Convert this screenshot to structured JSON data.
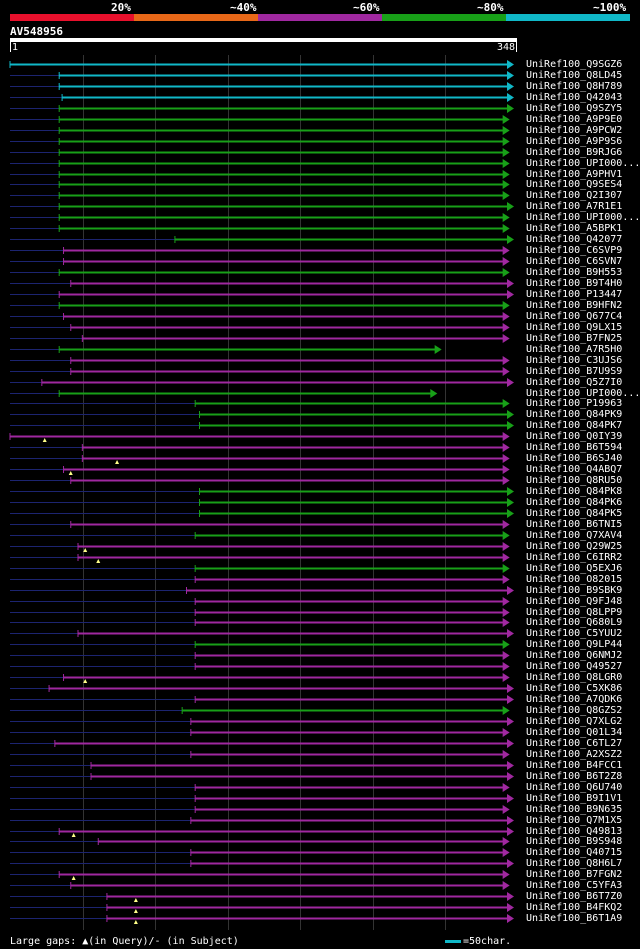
{
  "query": {
    "id": "AV548956",
    "start": "1",
    "end": "348",
    "length": 348
  },
  "legend": [
    {
      "label": "20%",
      "color": "#e8102c"
    },
    {
      "label": "~40%",
      "color": "#e86818"
    },
    {
      "label": "~60%",
      "color": "#a028a0"
    },
    {
      "label": "~80%",
      "color": "#18a018"
    },
    {
      "label": "~100%",
      "color": "#10b8c8"
    }
  ],
  "footer": {
    "gaps_text": "Large gaps: ▲(in Query)/- (in Subject)",
    "scale_text": "=50char."
  },
  "hits": [
    {
      "label": "UniRef100_Q9SGZ6",
      "color": "#10b8c8",
      "start": 1,
      "end": 348,
      "lead": 0,
      "gap": null
    },
    {
      "label": "UniRef100_Q8LD45",
      "color": "#10b8c8",
      "start": 35,
      "end": 348,
      "lead": 1,
      "gap": null
    },
    {
      "label": "UniRef100_Q8H789",
      "color": "#10b8c8",
      "start": 35,
      "end": 348,
      "lead": 1,
      "gap": null
    },
    {
      "label": "UniRef100_Q42043",
      "color": "#10b8c8",
      "start": 37,
      "end": 348,
      "lead": 1,
      "gap": null
    },
    {
      "label": "UniRef100_Q9SZY5",
      "color": "#18a018",
      "start": 35,
      "end": 348,
      "lead": 1,
      "gap": null
    },
    {
      "label": "UniRef100_A9P9E0",
      "color": "#18a018",
      "start": 35,
      "end": 345,
      "lead": 1,
      "gap": null
    },
    {
      "label": "UniRef100_A9PCW2",
      "color": "#18a018",
      "start": 35,
      "end": 345,
      "lead": 1,
      "gap": null
    },
    {
      "label": "UniRef100_A9P9S6",
      "color": "#18a018",
      "start": 35,
      "end": 345,
      "lead": 1,
      "gap": null
    },
    {
      "label": "UniRef100_B9RJG6",
      "color": "#18a018",
      "start": 35,
      "end": 345,
      "lead": 1,
      "gap": null
    },
    {
      "label": "UniRef100_UPI000...",
      "color": "#18a018",
      "start": 35,
      "end": 345,
      "lead": 1,
      "gap": null
    },
    {
      "label": "UniRef100_A9PHV1",
      "color": "#18a018",
      "start": 35,
      "end": 345,
      "lead": 1,
      "gap": null
    },
    {
      "label": "UniRef100_Q9SES4",
      "color": "#18a018",
      "start": 35,
      "end": 345,
      "lead": 1,
      "gap": null
    },
    {
      "label": "UniRef100_Q2I307",
      "color": "#18a018",
      "start": 35,
      "end": 345,
      "lead": 1,
      "gap": null
    },
    {
      "label": "UniRef100_A7R1E1",
      "color": "#18a018",
      "start": 35,
      "end": 348,
      "lead": 1,
      "gap": null
    },
    {
      "label": "UniRef100_UPI000...",
      "color": "#18a018",
      "start": 35,
      "end": 345,
      "lead": 1,
      "gap": null
    },
    {
      "label": "UniRef100_A5BPK1",
      "color": "#18a018",
      "start": 35,
      "end": 345,
      "lead": 1,
      "gap": null
    },
    {
      "label": "UniRef100_Q42077",
      "color": "#18a018",
      "start": 115,
      "end": 348,
      "lead": 1,
      "gap": null
    },
    {
      "label": "UniRef100_C6SVP9",
      "color": "#a028a0",
      "start": 38,
      "end": 345,
      "lead": 1,
      "gap": null
    },
    {
      "label": "UniRef100_C6SVN7",
      "color": "#a028a0",
      "start": 38,
      "end": 345,
      "lead": 1,
      "gap": null
    },
    {
      "label": "UniRef100_B9H553",
      "color": "#18a018",
      "start": 35,
      "end": 345,
      "lead": 1,
      "gap": null
    },
    {
      "label": "UniRef100_B9T4H0",
      "color": "#a028a0",
      "start": 43,
      "end": 348,
      "lead": 1,
      "gap": null
    },
    {
      "label": "UniRef100_P13447",
      "color": "#a028a0",
      "start": 35,
      "end": 348,
      "lead": 1,
      "gap": null
    },
    {
      "label": "UniRef100_B9HFN2",
      "color": "#18a018",
      "start": 35,
      "end": 345,
      "lead": 1,
      "gap": null
    },
    {
      "label": "UniRef100_Q677C4",
      "color": "#a028a0",
      "start": 38,
      "end": 345,
      "lead": 1,
      "gap": null
    },
    {
      "label": "UniRef100_Q9LX15",
      "color": "#a028a0",
      "start": 43,
      "end": 345,
      "lead": 1,
      "gap": null
    },
    {
      "label": "UniRef100_B7FN25",
      "color": "#a028a0",
      "start": 51,
      "end": 345,
      "lead": 1,
      "gap": null
    },
    {
      "label": "UniRef100_A7R5H0",
      "color": "#18a018",
      "start": 35,
      "end": 298,
      "lead": 1,
      "gap": null
    },
    {
      "label": "UniRef100_C3UJS6",
      "color": "#a028a0",
      "start": 43,
      "end": 345,
      "lead": 1,
      "gap": null
    },
    {
      "label": "UniRef100_B7U9S9",
      "color": "#a028a0",
      "start": 43,
      "end": 345,
      "lead": 1,
      "gap": null
    },
    {
      "label": "UniRef100_Q5Z7I0",
      "color": "#a028a0",
      "start": 23,
      "end": 348,
      "lead": 1,
      "gap": null
    },
    {
      "label": "UniRef100_UPI000...",
      "color": "#18a018",
      "start": 35,
      "end": 295,
      "lead": 1,
      "gap": null
    },
    {
      "label": "UniRef100_P19963",
      "color": "#18a018",
      "start": 129,
      "end": 345,
      "lead": 1,
      "gap": null
    },
    {
      "label": "UniRef100_Q84PK9",
      "color": "#18a018",
      "start": 132,
      "end": 348,
      "lead": 1,
      "gap": null
    },
    {
      "label": "UniRef100_Q84PK7",
      "color": "#18a018",
      "start": 132,
      "end": 348,
      "lead": 1,
      "gap": null
    },
    {
      "label": "UniRef100_Q0IY39",
      "color": "#a028a0",
      "start": 1,
      "end": 345,
      "lead": 0,
      "gap": 25
    },
    {
      "label": "UniRef100_B6T594",
      "color": "#a028a0",
      "start": 51,
      "end": 345,
      "lead": 1,
      "gap": null
    },
    {
      "label": "UniRef100_B6SJ40",
      "color": "#a028a0",
      "start": 51,
      "end": 345,
      "lead": 1,
      "gap": 75
    },
    {
      "label": "UniRef100_Q4ABQ7",
      "color": "#a028a0",
      "start": 38,
      "end": 345,
      "lead": 1,
      "gap": 43
    },
    {
      "label": "UniRef100_Q8RU50",
      "color": "#a028a0",
      "start": 43,
      "end": 345,
      "lead": 1,
      "gap": null
    },
    {
      "label": "UniRef100_Q84PK8",
      "color": "#18a018",
      "start": 132,
      "end": 348,
      "lead": 1,
      "gap": null
    },
    {
      "label": "UniRef100_Q84PK6",
      "color": "#18a018",
      "start": 132,
      "end": 348,
      "lead": 1,
      "gap": null
    },
    {
      "label": "UniRef100_Q84PK5",
      "color": "#18a018",
      "start": 132,
      "end": 348,
      "lead": 1,
      "gap": null
    },
    {
      "label": "UniRef100_B6TNI5",
      "color": "#a028a0",
      "start": 43,
      "end": 345,
      "lead": 1,
      "gap": null
    },
    {
      "label": "UniRef100_Q7XAV4",
      "color": "#18a018",
      "start": 129,
      "end": 345,
      "lead": 1,
      "gap": null
    },
    {
      "label": "UniRef100_Q29W25",
      "color": "#a028a0",
      "start": 48,
      "end": 345,
      "lead": 1,
      "gap": 53
    },
    {
      "label": "UniRef100_C6IRR2",
      "color": "#a028a0",
      "start": 48,
      "end": 345,
      "lead": 1,
      "gap": 62
    },
    {
      "label": "UniRef100_Q5EXJ6",
      "color": "#18a018",
      "start": 129,
      "end": 345,
      "lead": 1,
      "gap": null
    },
    {
      "label": "UniRef100_O82015",
      "color": "#a028a0",
      "start": 129,
      "end": 345,
      "lead": 1,
      "gap": null
    },
    {
      "label": "UniRef100_B9SBK9",
      "color": "#a028a0",
      "start": 123,
      "end": 348,
      "lead": 1,
      "gap": null
    },
    {
      "label": "UniRef100_Q9FJ48",
      "color": "#a028a0",
      "start": 129,
      "end": 345,
      "lead": 1,
      "gap": null
    },
    {
      "label": "UniRef100_Q8LPP9",
      "color": "#a028a0",
      "start": 129,
      "end": 345,
      "lead": 1,
      "gap": null
    },
    {
      "label": "UniRef100_Q680L9",
      "color": "#a028a0",
      "start": 129,
      "end": 345,
      "lead": 1,
      "gap": null
    },
    {
      "label": "UniRef100_C5YUU2",
      "color": "#a028a0",
      "start": 48,
      "end": 348,
      "lead": 1,
      "gap": null
    },
    {
      "label": "UniRef100_Q9LP44",
      "color": "#18a018",
      "start": 129,
      "end": 345,
      "lead": 1,
      "gap": null
    },
    {
      "label": "UniRef100_Q6NMJ2",
      "color": "#a028a0",
      "start": 129,
      "end": 345,
      "lead": 1,
      "gap": null
    },
    {
      "label": "UniRef100_Q49527",
      "color": "#a028a0",
      "start": 129,
      "end": 345,
      "lead": 1,
      "gap": null
    },
    {
      "label": "UniRef100_Q8LGR0",
      "color": "#a028a0",
      "start": 38,
      "end": 345,
      "lead": 1,
      "gap": 53
    },
    {
      "label": "UniRef100_C5XK86",
      "color": "#a028a0",
      "start": 28,
      "end": 348,
      "lead": 1,
      "gap": null
    },
    {
      "label": "UniRef100_A7QDK6",
      "color": "#a028a0",
      "start": 129,
      "end": 348,
      "lead": 1,
      "gap": null
    },
    {
      "label": "UniRef100_Q8GZS2",
      "color": "#18a018",
      "start": 120,
      "end": 345,
      "lead": 1,
      "gap": null
    },
    {
      "label": "UniRef100_Q7XLG2",
      "color": "#a028a0",
      "start": 126,
      "end": 348,
      "lead": 1,
      "gap": null
    },
    {
      "label": "UniRef100_Q01L34",
      "color": "#a028a0",
      "start": 126,
      "end": 345,
      "lead": 1,
      "gap": null
    },
    {
      "label": "UniRef100_C6TL27",
      "color": "#a028a0",
      "start": 32,
      "end": 348,
      "lead": 1,
      "gap": null
    },
    {
      "label": "UniRef100_A2XSZ2",
      "color": "#a028a0",
      "start": 126,
      "end": 345,
      "lead": 1,
      "gap": null
    },
    {
      "label": "UniRef100_B4FCC1",
      "color": "#a028a0",
      "start": 57,
      "end": 348,
      "lead": 1,
      "gap": null
    },
    {
      "label": "UniRef100_B6T2Z8",
      "color": "#a028a0",
      "start": 57,
      "end": 348,
      "lead": 1,
      "gap": null
    },
    {
      "label": "UniRef100_Q6U740",
      "color": "#a028a0",
      "start": 129,
      "end": 345,
      "lead": 1,
      "gap": null
    },
    {
      "label": "UniRef100_B9I1V1",
      "color": "#a028a0",
      "start": 129,
      "end": 348,
      "lead": 1,
      "gap": null
    },
    {
      "label": "UniRef100_B9N635",
      "color": "#a028a0",
      "start": 129,
      "end": 345,
      "lead": 1,
      "gap": null
    },
    {
      "label": "UniRef100_Q7M1X5",
      "color": "#a028a0",
      "start": 126,
      "end": 348,
      "lead": 1,
      "gap": null
    },
    {
      "label": "UniRef100_Q49813",
      "color": "#a028a0",
      "start": 35,
      "end": 348,
      "lead": 1,
      "gap": 45
    },
    {
      "label": "UniRef100_B9S948",
      "color": "#a028a0",
      "start": 62,
      "end": 345,
      "lead": 1,
      "gap": null
    },
    {
      "label": "UniRef100_Q40715",
      "color": "#a028a0",
      "start": 126,
      "end": 345,
      "lead": 1,
      "gap": null
    },
    {
      "label": "UniRef100_Q8H6L7",
      "color": "#a028a0",
      "start": 126,
      "end": 348,
      "lead": 1,
      "gap": null
    },
    {
      "label": "UniRef100_B7FGN2",
      "color": "#a028a0",
      "start": 35,
      "end": 345,
      "lead": 1,
      "gap": 45
    },
    {
      "label": "UniRef100_C5YFA3",
      "color": "#a028a0",
      "start": 43,
      "end": 345,
      "lead": 1,
      "gap": null
    },
    {
      "label": "UniRef100_B6T7Z0",
      "color": "#a028a0",
      "start": 68,
      "end": 348,
      "lead": 1,
      "gap": 88
    },
    {
      "label": "UniRef100_B4FKQ2",
      "color": "#a028a0",
      "start": 68,
      "end": 348,
      "lead": 1,
      "gap": 88
    },
    {
      "label": "UniRef100_B6T1A9",
      "color": "#a028a0",
      "start": 68,
      "end": 348,
      "lead": 1,
      "gap": 88
    }
  ]
}
